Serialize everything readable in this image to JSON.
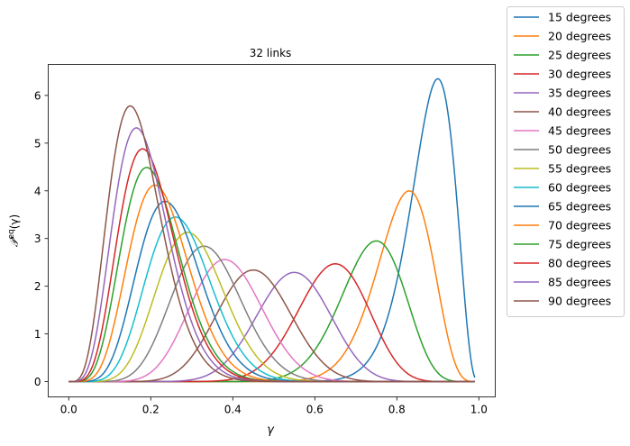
{
  "chart_data": {
    "type": "line",
    "title": "32 links",
    "xlabel": "γ",
    "ylabel_main": "𝒫",
    "ylabel_sup": "eq",
    "ylabel_arg": "(γ)",
    "xlim": [
      -0.05,
      1.04
    ],
    "ylim": [
      -0.32,
      6.65
    ],
    "x_ticks": [
      0.0,
      0.2,
      0.4,
      0.6,
      0.8,
      1.0
    ],
    "x_tick_labels": [
      "0.0",
      "0.2",
      "0.4",
      "0.6",
      "0.8",
      "1.0"
    ],
    "y_ticks": [
      0,
      1,
      2,
      3,
      4,
      5,
      6
    ],
    "y_tick_labels": [
      "0",
      "1",
      "2",
      "3",
      "4",
      "5",
      "6"
    ],
    "grid": false,
    "legend_placement": "outside-right",
    "series": [
      {
        "name": "15 degrees",
        "color": "#1f77b4",
        "peak_x": 0.9,
        "peak_y": 6.35
      },
      {
        "name": "20 degrees",
        "color": "#ff7f0e",
        "peak_x": 0.83,
        "peak_y": 4.0
      },
      {
        "name": "25 degrees",
        "color": "#2ca02c",
        "peak_x": 0.75,
        "peak_y": 2.95
      },
      {
        "name": "30 degrees",
        "color": "#d62728",
        "peak_x": 0.65,
        "peak_y": 2.47
      },
      {
        "name": "35 degrees",
        "color": "#9467bd",
        "peak_x": 0.55,
        "peak_y": 2.29
      },
      {
        "name": "40 degrees",
        "color": "#8c564b",
        "peak_x": 0.45,
        "peak_y": 2.34
      },
      {
        "name": "45 degrees",
        "color": "#e377c2",
        "peak_x": 0.38,
        "peak_y": 2.56
      },
      {
        "name": "50 degrees",
        "color": "#7f7f7f",
        "peak_x": 0.33,
        "peak_y": 2.84
      },
      {
        "name": "55 degrees",
        "color": "#bcbd22",
        "peak_x": 0.29,
        "peak_y": 3.13
      },
      {
        "name": "60 degrees",
        "color": "#17becf",
        "peak_x": 0.26,
        "peak_y": 3.45
      },
      {
        "name": "65 degrees",
        "color": "#1f77b4",
        "peak_x": 0.235,
        "peak_y": 3.78
      },
      {
        "name": "70 degrees",
        "color": "#ff7f0e",
        "peak_x": 0.21,
        "peak_y": 4.12
      },
      {
        "name": "75 degrees",
        "color": "#2ca02c",
        "peak_x": 0.19,
        "peak_y": 4.49
      },
      {
        "name": "80 degrees",
        "color": "#d62728",
        "peak_x": 0.18,
        "peak_y": 4.88
      },
      {
        "name": "85 degrees",
        "color": "#9467bd",
        "peak_x": 0.165,
        "peak_y": 5.32
      },
      {
        "name": "90 degrees",
        "color": "#8c564b",
        "peak_x": 0.15,
        "peak_y": 5.78
      }
    ]
  }
}
